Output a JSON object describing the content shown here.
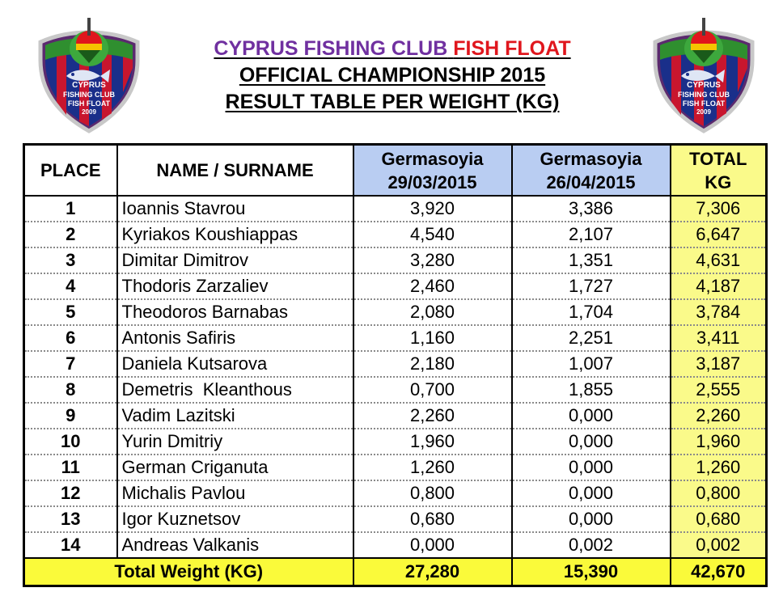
{
  "header": {
    "club_name": "CYPRUS FISHING CLUB",
    "club_highlight": "FISH FLOAT",
    "championship": "OFFICIAL CHAMPIONSHIP 2015",
    "subtitle": "RESULT TABLE PER WEIGHT (KG)"
  },
  "logo": {
    "line1": "CYPRUS",
    "line2": "FISHING CLUB",
    "line3": "FISH FLOAT",
    "year": "2009",
    "colors": {
      "navy": "#1a2f8a",
      "red": "#c8162e",
      "green": "#2f8f2f",
      "float_red": "#e0161d"
    }
  },
  "table": {
    "columns": {
      "place": "PLACE",
      "name": "NAME / SURNAME",
      "round1_venue": "Germasoyia",
      "round1_date": "29/03/2015",
      "round2_venue": "Germasoyia",
      "round2_date": "26/04/2015",
      "total_line1": "TOTAL",
      "total_line2": "KG"
    },
    "rows": [
      {
        "place": "1",
        "name": "Ioannis Stavrou",
        "r1": "3,920",
        "r2": "3,386",
        "total": "7,306"
      },
      {
        "place": "2",
        "name": "Kyriakos Koushiappas",
        "r1": "4,540",
        "r2": "2,107",
        "total": "6,647"
      },
      {
        "place": "3",
        "name": "Dimitar Dimitrov",
        "r1": "3,280",
        "r2": "1,351",
        "total": "4,631"
      },
      {
        "place": "4",
        "name": "Thodoris Zarzaliev",
        "r1": "2,460",
        "r2": "1,727",
        "total": "4,187"
      },
      {
        "place": "5",
        "name": "Theodoros Barnabas",
        "r1": "2,080",
        "r2": "1,704",
        "total": "3,784"
      },
      {
        "place": "6",
        "name": "Antonis Safiris",
        "r1": "1,160",
        "r2": "2,251",
        "total": "3,411"
      },
      {
        "place": "7",
        "name": "Daniela Kutsarova",
        "r1": "2,180",
        "r2": "1,007",
        "total": "3,187"
      },
      {
        "place": "8",
        "name": "Demetris  Kleanthous",
        "r1": "0,700",
        "r2": "1,855",
        "total": "2,555"
      },
      {
        "place": "9",
        "name": "Vadim Lazitski",
        "r1": "2,260",
        "r2": "0,000",
        "total": "2,260"
      },
      {
        "place": "10",
        "name": "Yurin Dmitriy",
        "r1": "1,960",
        "r2": "0,000",
        "total": "1,960"
      },
      {
        "place": "11",
        "name": "German Criganuta",
        "r1": "1,260",
        "r2": "0,000",
        "total": "1,260"
      },
      {
        "place": "12",
        "name": "Michalis Pavlou",
        "r1": "0,800",
        "r2": "0,000",
        "total": "0,800"
      },
      {
        "place": "13",
        "name": "Igor Kuznetsov",
        "r1": "0,680",
        "r2": "0,000",
        "total": "0,680"
      },
      {
        "place": "14",
        "name": "Andreas Valkanis",
        "r1": "0,000",
        "r2": "0,002",
        "total": "0,002"
      }
    ],
    "footer": {
      "label": "Total Weight (KG)",
      "r1": "27,280",
      "r2": "15,390",
      "total": "42,670"
    }
  }
}
